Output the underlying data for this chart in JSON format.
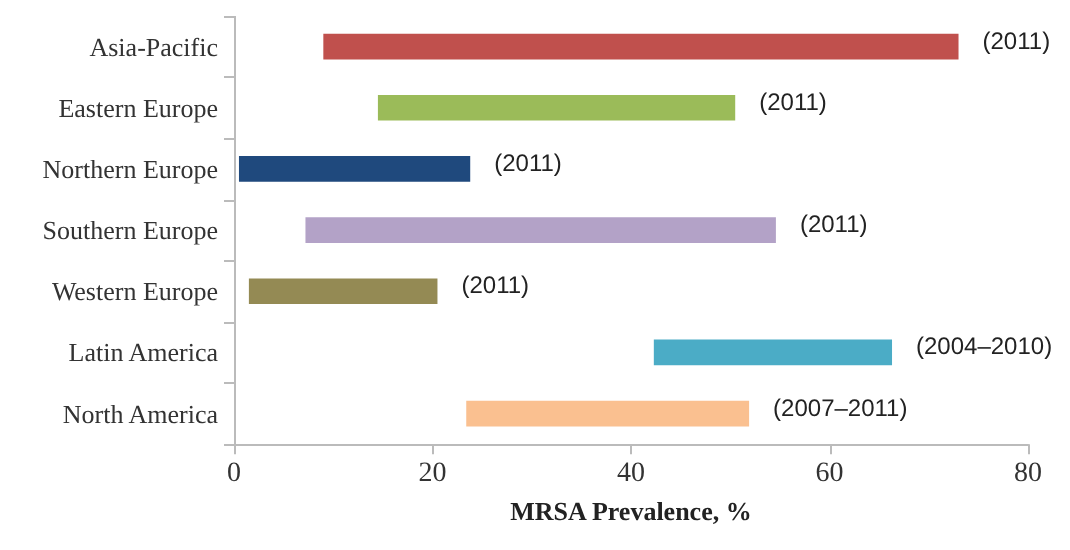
{
  "chart_data": {
    "type": "bar",
    "orientation": "horizontal",
    "xlabel": "MRSA Prevalence, %",
    "categories": [
      "Asia-Pacific",
      "Eastern Europe",
      "Northern Europe",
      "Southern Europe",
      "Western Europe",
      "Latin America",
      "North America"
    ],
    "base": [
      9,
      14.5,
      0.5,
      7.2,
      1.5,
      42.3,
      23.4
    ],
    "values": [
      64,
      36,
      23.3,
      47.4,
      19,
      24,
      28.5
    ],
    "colors": [
      "#c0504d",
      "#9bbb59",
      "#1f497d",
      "#b3a2c7",
      "#948a54",
      "#4bacc6",
      "#fac090"
    ],
    "annotations": [
      {
        "text": "(2011)",
        "x": 73,
        "y": "Asia-Pacific"
      },
      {
        "text": "(2011)",
        "x": 50.5,
        "y": "Eastern Europe"
      },
      {
        "text": "(2011)",
        "x": 23.8,
        "y": "Northern Europe"
      },
      {
        "text": "(2011)",
        "x": 54.6,
        "y": "Southern Europe"
      },
      {
        "text": "(2011)",
        "x": 20.5,
        "y": "Western Europe"
      },
      {
        "text": "(2004–2010)",
        "x": 66.3,
        "y": "Latin America"
      },
      {
        "text": "(2007–2011)",
        "x": 51.9,
        "y": "North America"
      }
    ],
    "xlim": [
      0,
      80
    ],
    "xticks": [
      0,
      20,
      40,
      60,
      80
    ],
    "grid": false
  }
}
